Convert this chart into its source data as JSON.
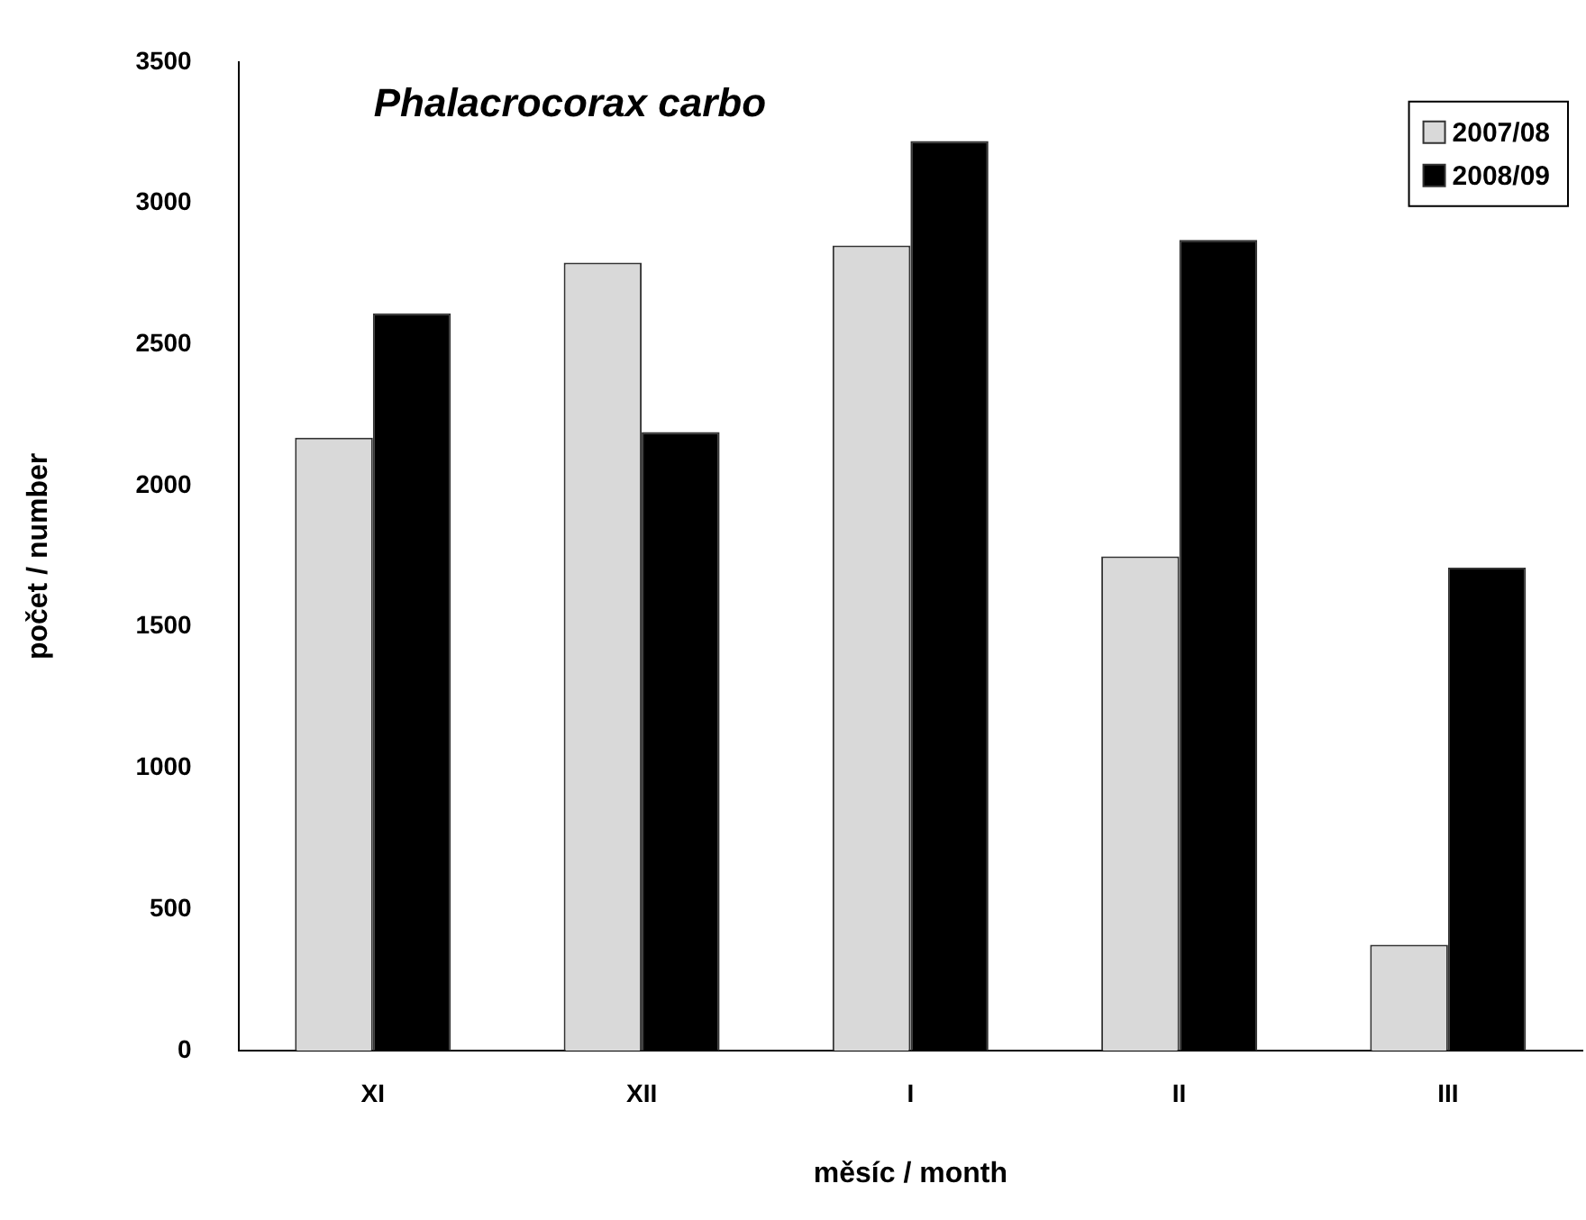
{
  "chart_data": {
    "type": "bar",
    "title": "Phalacrocorax carbo",
    "xlabel": "měsíc / month",
    "ylabel": "počet / number",
    "categories": [
      "XI",
      "XII",
      "I",
      "II",
      "III"
    ],
    "series": [
      {
        "name": "2007/08",
        "color": "#d9d9d9",
        "values": [
          2170,
          2790,
          2850,
          1750,
          375
        ]
      },
      {
        "name": "2008/09",
        "color": "#000000",
        "values": [
          2610,
          2190,
          3220,
          2870,
          1710
        ]
      }
    ],
    "ylim": [
      0,
      3500
    ],
    "yticks": [
      0,
      500,
      1000,
      1500,
      2000,
      2500,
      3000,
      3500
    ],
    "grid": false,
    "legend": "top right"
  }
}
